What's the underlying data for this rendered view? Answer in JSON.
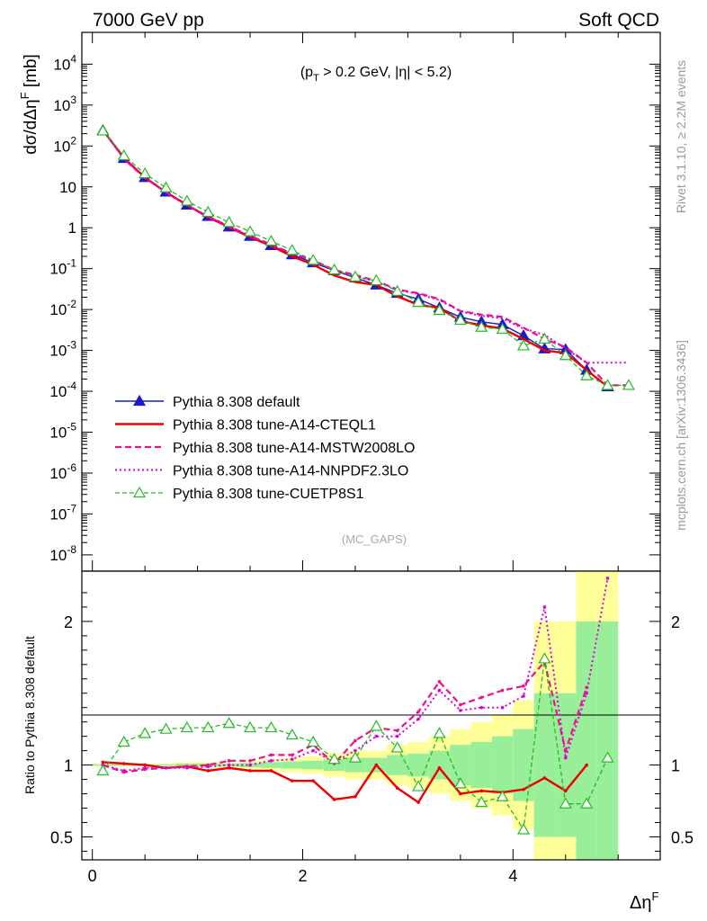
{
  "header": {
    "left": "7000 GeV pp",
    "right": "Soft QCD"
  },
  "annotations": {
    "cuts": "(p_T > 0.2 GeV, |η| < 5.2)",
    "analysis": "(MC_GAPS)",
    "side_rivet": "Rivet 3.1.10, ≥ 2.2M events",
    "side_mcplots": "mcplots.cern.ch [arXiv:1306.3436]"
  },
  "colors": {
    "default": "#1a1acc",
    "cteql1": "#ee0000",
    "mstw": "#ee1188",
    "nnpdf": "#dd00dd",
    "cuetp8s1": "#22bb22",
    "band_yellow": "#ffff99",
    "band_green": "#99ee99"
  },
  "chart_data": [
    {
      "type": "line",
      "panel": "main",
      "ylabel": "dσ/dΔη^F [mb]",
      "yscale": "log",
      "xlim": [
        -0.1,
        5.4
      ],
      "ylim": [
        4e-09,
        60000
      ],
      "yticks": [
        "10^-8",
        "10^-7",
        "10^-6",
        "10^-5",
        "10^-4",
        "10^-3",
        "10^-2",
        "10^-1",
        "1",
        "10",
        "10^2",
        "10^3",
        "10^4"
      ],
      "legend_position": "bottom-left",
      "x": [
        0.1,
        0.3,
        0.5,
        0.7,
        0.9,
        1.1,
        1.3,
        1.5,
        1.7,
        1.9,
        2.1,
        2.3,
        2.5,
        2.7,
        2.9,
        3.1,
        3.3,
        3.5,
        3.7,
        3.9,
        4.1,
        4.3,
        4.5,
        4.7,
        4.9,
        5.1
      ],
      "series": [
        {
          "name": "Pythia 8.308 default",
          "style": "solid-triangle",
          "values": [
            240,
            50,
            17,
            7.5,
            3.6,
            1.9,
            1.05,
            0.62,
            0.37,
            0.22,
            0.14,
            0.09,
            0.06,
            0.04,
            0.025,
            0.018,
            0.011,
            0.0065,
            0.005,
            0.0043,
            0.0023,
            0.0011,
            0.00105,
            0.00033,
            0.00013,
            null
          ]
        },
        {
          "name": "Pythia 8.308 tune-A14-CTEQL1",
          "style": "solid",
          "values": [
            245,
            51,
            17,
            7.4,
            3.6,
            1.8,
            1.03,
            0.59,
            0.36,
            0.2,
            0.125,
            0.068,
            0.047,
            0.04,
            0.021,
            0.013,
            0.011,
            0.0052,
            0.0041,
            0.0034,
            0.0019,
            0.001,
            0.00086,
            0.00033,
            0.00013,
            null
          ]
        },
        {
          "name": "Pythia 8.308 tune-A14-MSTW2008LO",
          "style": "dashed",
          "values": [
            248,
            48,
            16.5,
            7.4,
            3.55,
            1.9,
            1.08,
            0.63,
            0.39,
            0.235,
            0.16,
            0.093,
            0.07,
            0.05,
            0.031,
            0.025,
            0.018,
            0.0092,
            0.0075,
            0.0066,
            0.0036,
            0.0019,
            0.0012,
            0.0005,
            0.00014,
            0.00014
          ]
        },
        {
          "name": "Pythia 8.308 tune-A14-NNPDF2.3LO",
          "style": "dotted",
          "values": [
            246,
            49,
            16.8,
            7.3,
            3.5,
            1.85,
            1.05,
            0.62,
            0.38,
            0.23,
            0.155,
            0.09,
            0.065,
            0.048,
            0.03,
            0.024,
            0.017,
            0.009,
            0.007,
            0.006,
            0.0034,
            0.0024,
            0.0011,
            0.0005,
            0.0005,
            0.0005
          ]
        },
        {
          "name": "Pythia 8.308 tune-CUETP8S1",
          "style": "dashed-open-triangle",
          "values": [
            235,
            58,
            21,
            9.5,
            4.5,
            2.4,
            1.35,
            0.8,
            0.47,
            0.28,
            0.16,
            0.093,
            0.063,
            0.051,
            0.028,
            0.015,
            0.0095,
            0.0055,
            0.0037,
            0.0033,
            0.0013,
            0.0019,
            0.00075,
            0.00024,
            0.00014,
            0.00014
          ]
        }
      ]
    },
    {
      "type": "line",
      "panel": "ratio",
      "xlabel": "Δη^F",
      "ylabel": "Ratio to Pythia 8.308 default",
      "xlim": [
        -0.1,
        5.4
      ],
      "ylim": [
        0.34,
        2.35
      ],
      "xticks": [
        "0",
        "2",
        "4"
      ],
      "yticks": [
        "0.5",
        "1",
        "2"
      ],
      "x": [
        0.1,
        0.3,
        0.5,
        0.7,
        0.9,
        1.1,
        1.3,
        1.5,
        1.7,
        1.9,
        2.1,
        2.3,
        2.5,
        2.7,
        2.9,
        3.1,
        3.3,
        3.5,
        3.7,
        3.9,
        4.1,
        4.3,
        4.5,
        4.7,
        4.9
      ],
      "bands": {
        "yellow_halfwidth": [
          0.01,
          0.01,
          0.01,
          0.01,
          0.02,
          0.02,
          0.02,
          0.03,
          0.04,
          0.05,
          0.06,
          0.08,
          0.1,
          0.1,
          0.14,
          0.16,
          0.2,
          0.25,
          0.3,
          0.35,
          0.45,
          1.0,
          1.0,
          1.4,
          1.4
        ],
        "green_halfwidth": [
          0.005,
          0.005,
          0.005,
          0.005,
          0.01,
          0.01,
          0.01,
          0.015,
          0.02,
          0.025,
          0.03,
          0.04,
          0.05,
          0.05,
          0.07,
          0.08,
          0.1,
          0.14,
          0.16,
          0.2,
          0.25,
          0.5,
          0.5,
          1.0,
          1.0
        ]
      },
      "series": [
        {
          "name": "Pythia 8.308 tune-A14-CTEQL1",
          "values": [
            1.02,
            1.01,
            1.0,
            0.98,
            0.99,
            0.96,
            0.98,
            0.96,
            0.96,
            0.89,
            0.89,
            0.76,
            0.78,
            1.0,
            0.84,
            0.74,
            0.98,
            0.8,
            0.82,
            0.81,
            0.83,
            0.91,
            0.82,
            1.0,
            null
          ]
        },
        {
          "name": "Pythia 8.308 tune-A14-MSTW2008LO",
          "values": [
            1.0,
            0.95,
            0.97,
            0.98,
            0.99,
            1.0,
            1.03,
            1.03,
            1.07,
            1.07,
            1.14,
            1.01,
            1.17,
            1.26,
            1.24,
            1.37,
            1.58,
            1.42,
            1.47,
            1.52,
            1.55,
            1.72,
            1.1,
            1.54,
            null
          ]
        },
        {
          "name": "Pythia 8.308 tune-A14-NNPDF2.3LO",
          "values": [
            1.0,
            0.96,
            0.98,
            0.98,
            0.98,
            0.99,
            1.0,
            1.0,
            1.03,
            1.04,
            1.1,
            1.02,
            1.1,
            1.2,
            1.2,
            1.32,
            1.52,
            1.38,
            1.4,
            1.4,
            1.48,
            2.1,
            1.05,
            1.5,
            2.3
          ]
        },
        {
          "name": "Pythia 8.308 tune-CUETP8S1",
          "values": [
            0.96,
            1.16,
            1.22,
            1.25,
            1.26,
            1.26,
            1.29,
            1.26,
            1.26,
            1.21,
            1.16,
            1.04,
            1.05,
            1.27,
            1.12,
            0.85,
            1.22,
            0.87,
            0.74,
            0.78,
            0.55,
            1.74,
            0.73,
            0.73,
            1.05
          ]
        }
      ]
    }
  ]
}
